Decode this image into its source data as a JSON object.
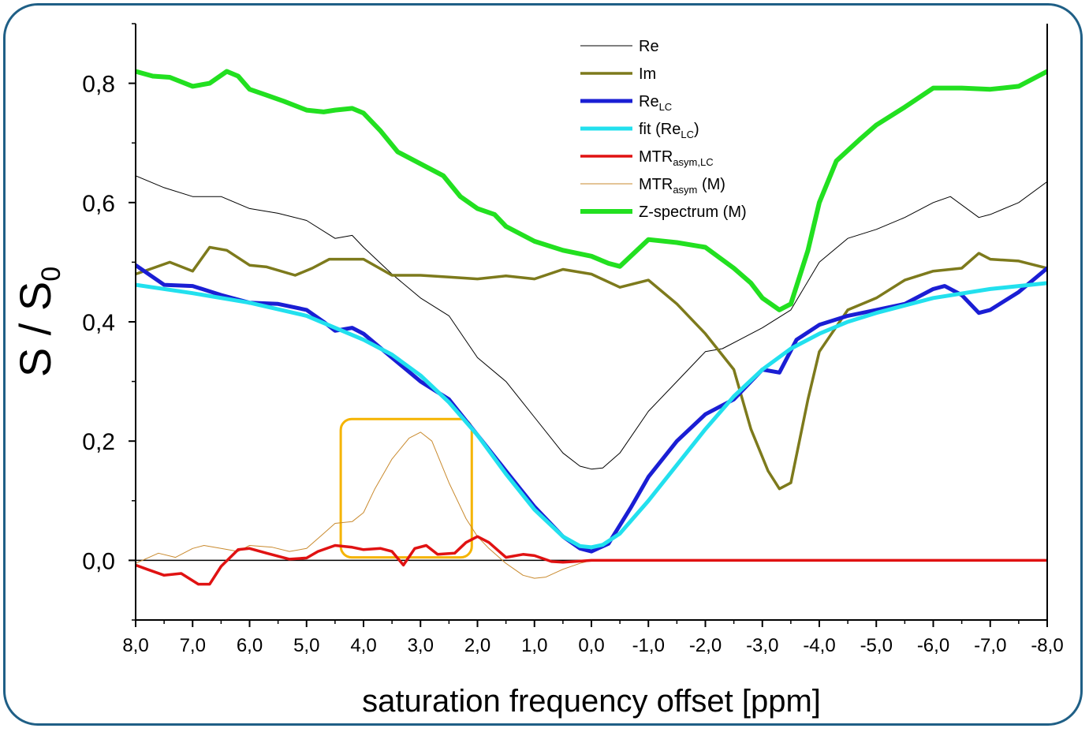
{
  "chart_data": {
    "type": "line",
    "xlabel": "saturation frequency offset [ppm]",
    "ylabel": {
      "main": "S / S",
      "sub": "0"
    },
    "xlim": [
      8.0,
      -8.0
    ],
    "ylim": [
      -0.1,
      0.9
    ],
    "x_ticks": [
      {
        "v": 8,
        "label": "8,0"
      },
      {
        "v": 7,
        "label": "7,0"
      },
      {
        "v": 6,
        "label": "6,0"
      },
      {
        "v": 5,
        "label": "5,0"
      },
      {
        "v": 4,
        "label": "4,0"
      },
      {
        "v": 3,
        "label": "3,0"
      },
      {
        "v": 2,
        "label": "2,0"
      },
      {
        "v": 1,
        "label": "1,0"
      },
      {
        "v": 0,
        "label": "0,0"
      },
      {
        "v": -1,
        "label": "-1,0"
      },
      {
        "v": -2,
        "label": "-2,0"
      },
      {
        "v": -3,
        "label": "-3,0"
      },
      {
        "v": -4,
        "label": "-4,0"
      },
      {
        "v": -5,
        "label": "-5,0"
      },
      {
        "v": -6,
        "label": "-6,0"
      },
      {
        "v": -7,
        "label": "-7,0"
      },
      {
        "v": -8,
        "label": "-8,0"
      }
    ],
    "y_ticks": [
      {
        "v": 0.0,
        "label": "0,0"
      },
      {
        "v": 0.2,
        "label": "0,2"
      },
      {
        "v": 0.4,
        "label": "0,4"
      },
      {
        "v": 0.6,
        "label": "0,6"
      },
      {
        "v": 0.8,
        "label": "0,8"
      }
    ],
    "zero_line": 0.0,
    "highlight_box": {
      "x0": 4.4,
      "x1": 2.1,
      "y0": 0.005,
      "y1": 0.237,
      "color": "#f5b400"
    },
    "series": [
      {
        "name": "Re",
        "color": "#000000",
        "width": 1,
        "x": [
          8.0,
          7.5,
          7.0,
          6.5,
          6.0,
          5.5,
          5.0,
          4.5,
          4.2,
          4.0,
          3.5,
          3.0,
          2.5,
          2.0,
          1.5,
          1.0,
          0.5,
          0.2,
          0.0,
          -0.2,
          -0.5,
          -1.0,
          -1.5,
          -2.0,
          -2.3,
          -2.6,
          -3.0,
          -3.5,
          -4.0,
          -4.5,
          -5.0,
          -5.5,
          -6.0,
          -6.3,
          -6.8,
          -7.0,
          -7.5,
          -8.0
        ],
        "y": [
          0.645,
          0.625,
          0.61,
          0.61,
          0.59,
          0.582,
          0.57,
          0.54,
          0.545,
          0.525,
          0.48,
          0.44,
          0.41,
          0.34,
          0.3,
          0.24,
          0.18,
          0.158,
          0.153,
          0.155,
          0.18,
          0.25,
          0.3,
          0.35,
          0.355,
          0.37,
          0.39,
          0.42,
          0.5,
          0.54,
          0.555,
          0.575,
          0.6,
          0.61,
          0.575,
          0.58,
          0.6,
          0.635
        ]
      },
      {
        "name": "Im",
        "color": "#7d7a1c",
        "width": 3.5,
        "x": [
          8.0,
          7.7,
          7.4,
          7.0,
          6.7,
          6.4,
          6.0,
          5.7,
          5.2,
          4.9,
          4.6,
          4.0,
          3.5,
          3.0,
          2.5,
          2.0,
          1.5,
          1.0,
          0.5,
          0.0,
          -0.5,
          -1.0,
          -1.5,
          -2.0,
          -2.5,
          -2.8,
          -3.1,
          -3.3,
          -3.5,
          -3.8,
          -4.0,
          -4.5,
          -5.0,
          -5.5,
          -6.0,
          -6.5,
          -6.8,
          -7.0,
          -7.5,
          -8.0
        ],
        "y": [
          0.48,
          0.49,
          0.5,
          0.485,
          0.525,
          0.52,
          0.495,
          0.492,
          0.478,
          0.49,
          0.505,
          0.505,
          0.478,
          0.478,
          0.475,
          0.472,
          0.477,
          0.472,
          0.488,
          0.48,
          0.458,
          0.47,
          0.43,
          0.38,
          0.32,
          0.22,
          0.15,
          0.12,
          0.13,
          0.27,
          0.35,
          0.42,
          0.44,
          0.47,
          0.485,
          0.49,
          0.515,
          0.505,
          0.502,
          0.49
        ]
      },
      {
        "name": "Re_LC",
        "color": "#1a1ed4",
        "width": 5,
        "x": [
          8.0,
          7.5,
          7.0,
          6.5,
          6.0,
          5.5,
          5.0,
          4.7,
          4.5,
          4.2,
          4.0,
          3.5,
          3.0,
          2.5,
          2.0,
          1.5,
          1.0,
          0.5,
          0.2,
          0.0,
          -0.3,
          -0.7,
          -1.0,
          -1.5,
          -2.0,
          -2.5,
          -3.0,
          -3.3,
          -3.6,
          -4.0,
          -4.5,
          -5.0,
          -5.5,
          -6.0,
          -6.2,
          -6.5,
          -6.8,
          -7.0,
          -7.5,
          -8.0
        ],
        "y": [
          0.495,
          0.462,
          0.46,
          0.445,
          0.432,
          0.43,
          0.42,
          0.4,
          0.385,
          0.39,
          0.38,
          0.34,
          0.3,
          0.27,
          0.21,
          0.15,
          0.09,
          0.04,
          0.02,
          0.015,
          0.028,
          0.09,
          0.14,
          0.2,
          0.245,
          0.27,
          0.32,
          0.315,
          0.37,
          0.395,
          0.41,
          0.42,
          0.43,
          0.455,
          0.46,
          0.445,
          0.415,
          0.42,
          0.45,
          0.49
        ]
      },
      {
        "name": "fit (Re_LC)",
        "color": "#22e0ee",
        "width": 5,
        "x": [
          8.0,
          7.0,
          6.0,
          5.0,
          4.5,
          4.0,
          3.5,
          3.0,
          2.5,
          2.0,
          1.5,
          1.0,
          0.5,
          0.2,
          0.0,
          -0.2,
          -0.5,
          -1.0,
          -1.5,
          -2.0,
          -2.5,
          -3.0,
          -3.5,
          -4.0,
          -4.5,
          -5.0,
          -6.0,
          -7.0,
          -8.0
        ],
        "y": [
          0.462,
          0.448,
          0.432,
          0.41,
          0.39,
          0.37,
          0.345,
          0.31,
          0.265,
          0.21,
          0.145,
          0.085,
          0.04,
          0.024,
          0.022,
          0.026,
          0.045,
          0.1,
          0.16,
          0.22,
          0.275,
          0.32,
          0.355,
          0.38,
          0.4,
          0.415,
          0.44,
          0.455,
          0.465
        ]
      },
      {
        "name": "MTR_asym,LC",
        "color": "#e01212",
        "width": 3.5,
        "x": [
          8.0,
          7.8,
          7.5,
          7.2,
          6.9,
          6.7,
          6.5,
          6.2,
          6.0,
          5.7,
          5.3,
          5.0,
          4.8,
          4.5,
          4.2,
          4.0,
          3.7,
          3.5,
          3.3,
          3.1,
          2.9,
          2.7,
          2.4,
          2.2,
          2.0,
          1.8,
          1.5,
          1.2,
          1.0,
          0.7,
          0.5,
          0.3,
          0.0,
          -8.0
        ],
        "y": [
          -0.008,
          -0.015,
          -0.025,
          -0.022,
          -0.04,
          -0.04,
          -0.01,
          0.018,
          0.02,
          0.012,
          0.002,
          0.004,
          0.015,
          0.025,
          0.022,
          0.018,
          0.02,
          0.015,
          -0.008,
          0.02,
          0.025,
          0.01,
          0.012,
          0.03,
          0.04,
          0.03,
          0.005,
          0.01,
          0.008,
          -0.002,
          -0.003,
          -0.002,
          0.0,
          0.0
        ]
      },
      {
        "name": "MTR_asym (M)",
        "color": "#c98a2e",
        "width": 1,
        "x": [
          8.0,
          7.6,
          7.3,
          7.0,
          6.8,
          6.5,
          6.2,
          6.0,
          5.6,
          5.3,
          5.0,
          4.7,
          4.5,
          4.2,
          4.0,
          3.8,
          3.5,
          3.2,
          3.0,
          2.8,
          2.5,
          2.2,
          2.0,
          1.8,
          1.5,
          1.2,
          1.0,
          0.8,
          0.5,
          0.2,
          0.0
        ],
        "y": [
          -0.005,
          0.012,
          0.005,
          0.02,
          0.025,
          0.02,
          0.015,
          0.025,
          0.022,
          0.015,
          0.02,
          0.045,
          0.062,
          0.065,
          0.08,
          0.12,
          0.17,
          0.205,
          0.215,
          0.2,
          0.13,
          0.07,
          0.04,
          0.02,
          -0.005,
          -0.025,
          -0.03,
          -0.028,
          -0.015,
          -0.005,
          0.0
        ]
      },
      {
        "name": "Z-spectrum (M)",
        "color": "#22e020",
        "width": 6,
        "x": [
          8.0,
          7.7,
          7.4,
          7.0,
          6.7,
          6.4,
          6.2,
          6.0,
          5.7,
          5.4,
          5.0,
          4.7,
          4.5,
          4.2,
          4.0,
          3.7,
          3.4,
          3.0,
          2.6,
          2.3,
          2.0,
          1.7,
          1.5,
          1.0,
          0.5,
          0.0,
          -0.3,
          -0.5,
          -0.8,
          -1.0,
          -1.5,
          -2.0,
          -2.5,
          -2.8,
          -3.0,
          -3.3,
          -3.5,
          -3.8,
          -4.0,
          -4.3,
          -4.7,
          -5.0,
          -5.5,
          -6.0,
          -6.5,
          -7.0,
          -7.5,
          -8.0
        ],
        "y": [
          0.82,
          0.812,
          0.81,
          0.795,
          0.8,
          0.82,
          0.812,
          0.79,
          0.78,
          0.77,
          0.755,
          0.752,
          0.755,
          0.758,
          0.75,
          0.72,
          0.685,
          0.665,
          0.645,
          0.61,
          0.59,
          0.58,
          0.56,
          0.535,
          0.52,
          0.51,
          0.498,
          0.493,
          0.52,
          0.538,
          0.533,
          0.525,
          0.49,
          0.465,
          0.44,
          0.42,
          0.43,
          0.52,
          0.6,
          0.67,
          0.705,
          0.73,
          0.76,
          0.792,
          0.792,
          0.79,
          0.795,
          0.82
        ]
      }
    ],
    "legend": {
      "placement": "top-center",
      "entries": [
        {
          "series": 0,
          "text": "Re",
          "sub": "",
          "suffix": ""
        },
        {
          "series": 1,
          "text": "Im",
          "sub": "",
          "suffix": ""
        },
        {
          "series": 2,
          "text": "Re",
          "sub": "LC",
          "suffix": ""
        },
        {
          "series": 3,
          "text": "fit (Re",
          "sub": "LC",
          "suffix": ")"
        },
        {
          "series": 4,
          "text": "MTR",
          "sub": "asym,LC",
          "suffix": ""
        },
        {
          "series": 5,
          "text": "MTR",
          "sub": "asym",
          "suffix": " (M)"
        },
        {
          "series": 6,
          "text": "Z-spectrum (M)",
          "sub": "",
          "suffix": ""
        }
      ]
    }
  }
}
